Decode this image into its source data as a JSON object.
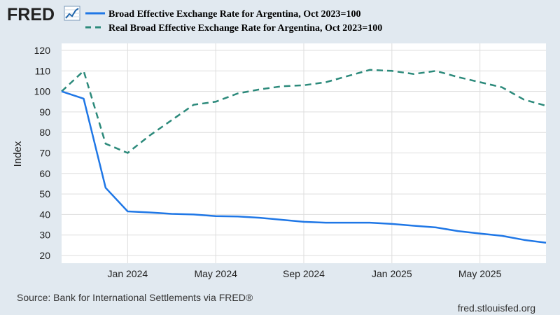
{
  "header": {
    "logo_text": "FRED",
    "logo_icon": "line-chart-icon"
  },
  "legend": {
    "series1_label": "Broad Effective Exchange Rate for Argentina, Oct 2023=100",
    "series2_label": "Real Broad Effective Exchange Rate for Argentina, Oct 2023=100"
  },
  "footer": {
    "source": "Source: Bank for International Settlements via FRED®",
    "site": "fred.stlouisfed.org"
  },
  "colors": {
    "background": "#e1e9f0",
    "plot_background": "#ffffff",
    "series1": "#1f77e6",
    "series2": "#2c8a7b",
    "grid": "#dddddd"
  },
  "chart_data": {
    "type": "line",
    "title": "",
    "xlabel": "",
    "ylabel": "Index",
    "ylim": [
      20,
      120
    ],
    "yticks": [
      20,
      30,
      40,
      50,
      60,
      70,
      80,
      90,
      100,
      110,
      120
    ],
    "xlim": [
      "2023-10",
      "2025-08"
    ],
    "xticks": [
      {
        "date": "2024-01",
        "label": "Jan 2024"
      },
      {
        "date": "2024-05",
        "label": "May 2024"
      },
      {
        "date": "2024-09",
        "label": "Sep 2024"
      },
      {
        "date": "2025-01",
        "label": "Jan 2025"
      },
      {
        "date": "2025-05",
        "label": "May 2025"
      }
    ],
    "grid": true,
    "legend_position": "top",
    "x": [
      "2023-10",
      "2023-11",
      "2023-12",
      "2024-01",
      "2024-02",
      "2024-03",
      "2024-04",
      "2024-05",
      "2024-06",
      "2024-07",
      "2024-08",
      "2024-09",
      "2024-10",
      "2024-11",
      "2024-12",
      "2025-01",
      "2025-02",
      "2025-03",
      "2025-04",
      "2025-05",
      "2025-06",
      "2025-07",
      "2025-08"
    ],
    "series": [
      {
        "name": "Broad Effective Exchange Rate for Argentina, Oct 2023=100",
        "style": "solid",
        "values": [
          100,
          96.5,
          53,
          41.5,
          41,
          40.3,
          40,
          39.2,
          39,
          38.4,
          37.4,
          36.4,
          36,
          36,
          36,
          35.4,
          34.5,
          33.7,
          31.9,
          30.7,
          29.6,
          27.6,
          26.2
        ]
      },
      {
        "name": "Real Broad Effective Exchange Rate for Argentina, Oct 2023=100",
        "style": "dashed",
        "values": [
          100,
          110,
          74.5,
          70,
          78.5,
          86,
          93.5,
          95,
          99,
          101,
          102.5,
          103,
          104.5,
          107.5,
          110.5,
          110,
          108.5,
          110,
          107,
          104.5,
          102,
          96,
          93
        ]
      }
    ]
  }
}
